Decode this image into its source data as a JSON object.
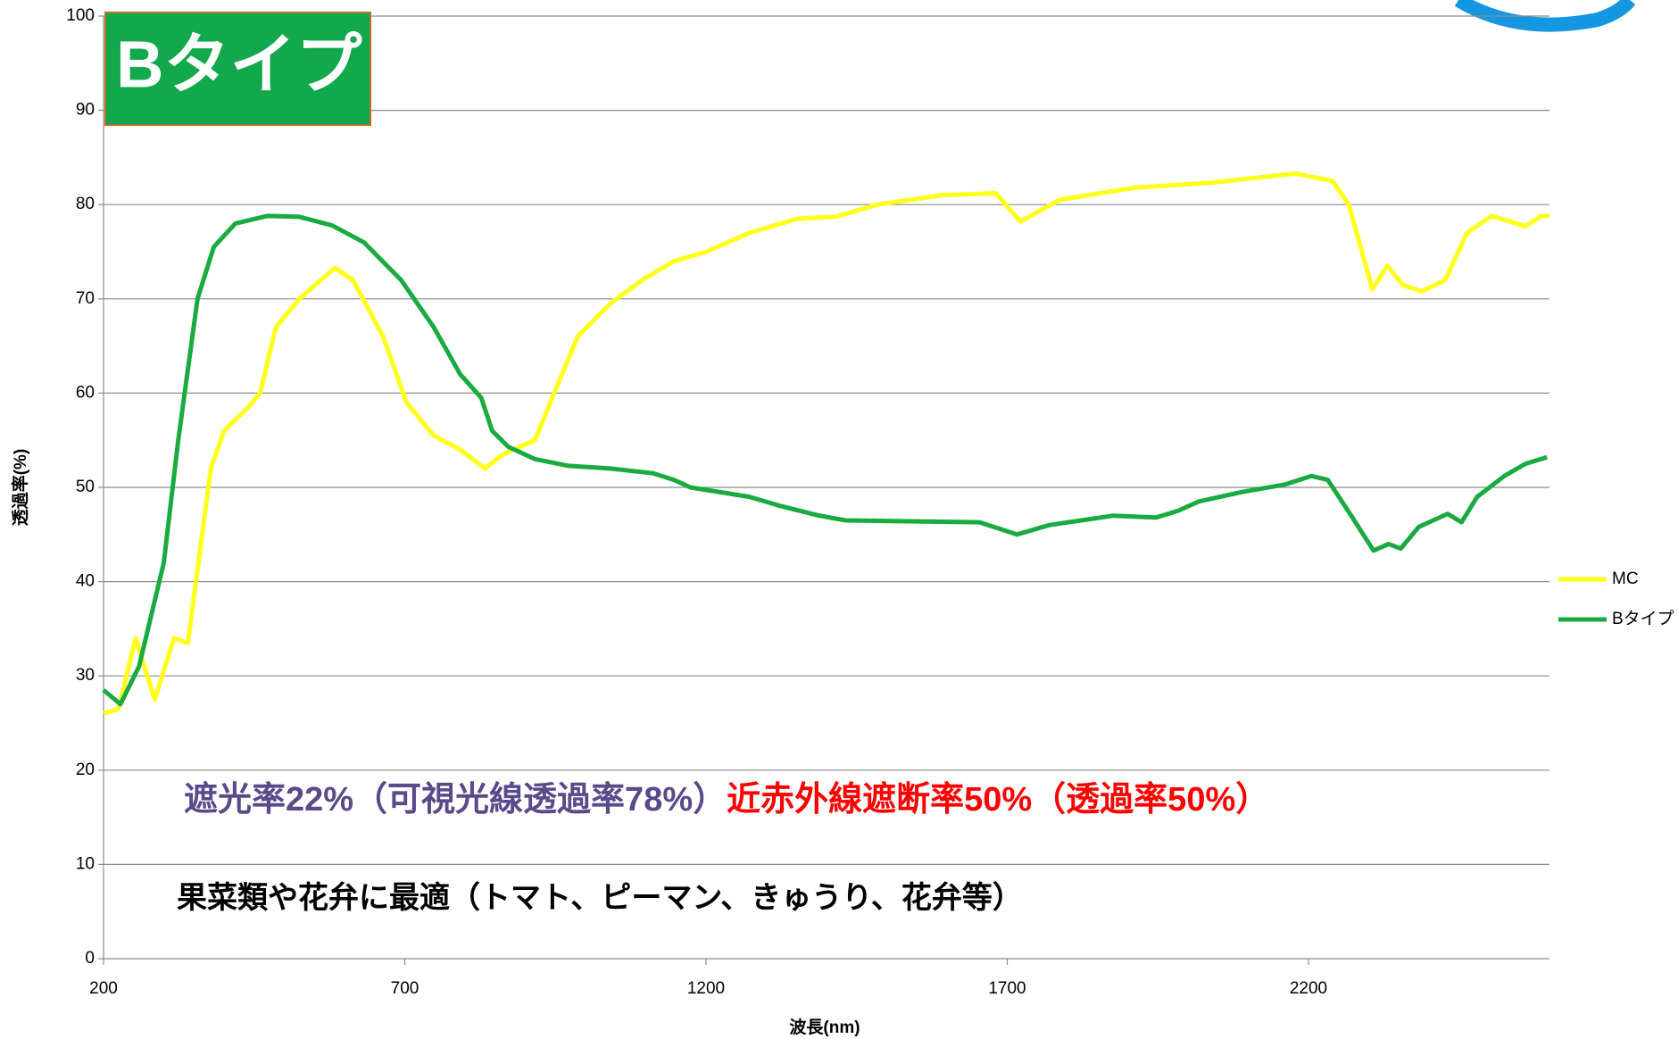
{
  "chart_data": {
    "type": "line",
    "title": "Bタイプ",
    "xlabel": "波長(nm)",
    "ylabel": "透過率(%)",
    "xlim": [
      200,
      2600
    ],
    "ylim": [
      0,
      100
    ],
    "xticks": [
      200,
      700,
      1200,
      1700,
      2200
    ],
    "yticks": [
      0,
      10,
      20,
      30,
      40,
      50,
      60,
      70,
      80,
      90,
      100
    ],
    "grid": true,
    "legend": "right",
    "annotations": [
      {
        "text": "遮光率22%（可視光線透過率78%）",
        "color": "#5b4a8a"
      },
      {
        "text": "近赤外線遮断率50%（透過率50%）",
        "color": "#ff0000"
      },
      {
        "text": "果菜類や花弁に最適（トマト、ピーマン、きゅうり、花弁等）",
        "color": "#000000"
      }
    ],
    "series": [
      {
        "name": "MC",
        "color": "#ffff1a",
        "x": [
          200,
          225,
          253,
          285,
          317,
          340,
          378,
          400,
          440,
          460,
          486,
          525,
          584,
          614,
          664,
          703,
          748,
          792,
          833,
          863,
          916,
          948,
          987,
          1041,
          1094,
          1147,
          1201,
          1272,
          1352,
          1414,
          1485,
          1592,
          1681,
          1722,
          1787,
          1912,
          2036,
          2178,
          2240,
          2267,
          2306,
          2331,
          2356,
          2388,
          2427,
          2463,
          2504,
          2560,
          2587,
          2600
        ],
        "values": [
          26,
          26.5,
          34,
          27.5,
          34,
          33.5,
          52,
          56,
          58.5,
          60,
          67,
          70,
          73.3,
          72,
          66,
          59,
          55.5,
          54,
          52,
          53.5,
          55,
          60,
          66,
          69.5,
          72,
          74,
          75,
          77,
          78.5,
          78.7,
          80,
          81,
          81.2,
          78.2,
          80.5,
          81.8,
          82.3,
          83.3,
          82.5,
          80,
          71,
          73.5,
          71.5,
          70.8,
          72,
          77,
          78.8,
          77.7,
          78.8,
          78.8
        ]
      },
      {
        "name": "Bタイプ",
        "color": "#1aab40",
        "x": [
          200,
          228,
          259,
          300,
          324,
          356,
          383,
          419,
          472,
          525,
          579,
          632,
          694,
          748,
          792,
          827,
          845,
          872,
          916,
          970,
          1041,
          1112,
          1147,
          1174,
          1272,
          1325,
          1388,
          1432,
          1538,
          1654,
          1716,
          1770,
          1823,
          1876,
          1947,
          1983,
          2018,
          2089,
          2161,
          2205,
          2232,
          2271,
          2308,
          2333,
          2353,
          2383,
          2431,
          2454,
          2480,
          2525,
          2560,
          2596
        ],
        "values": [
          28.5,
          27,
          31,
          42,
          55,
          70,
          75.5,
          78,
          78.8,
          78.7,
          77.8,
          76,
          72,
          67,
          62,
          59.5,
          56,
          54.3,
          53,
          52.3,
          52,
          51.5,
          50.8,
          50,
          49,
          48,
          47,
          46.5,
          46.4,
          46.3,
          45,
          46,
          46.5,
          47,
          46.8,
          47.5,
          48.5,
          49.5,
          50.3,
          51.2,
          50.8,
          47,
          43.3,
          44,
          43.5,
          45.8,
          47.2,
          46.3,
          49,
          51.2,
          52.5,
          53.2
        ]
      }
    ]
  }
}
